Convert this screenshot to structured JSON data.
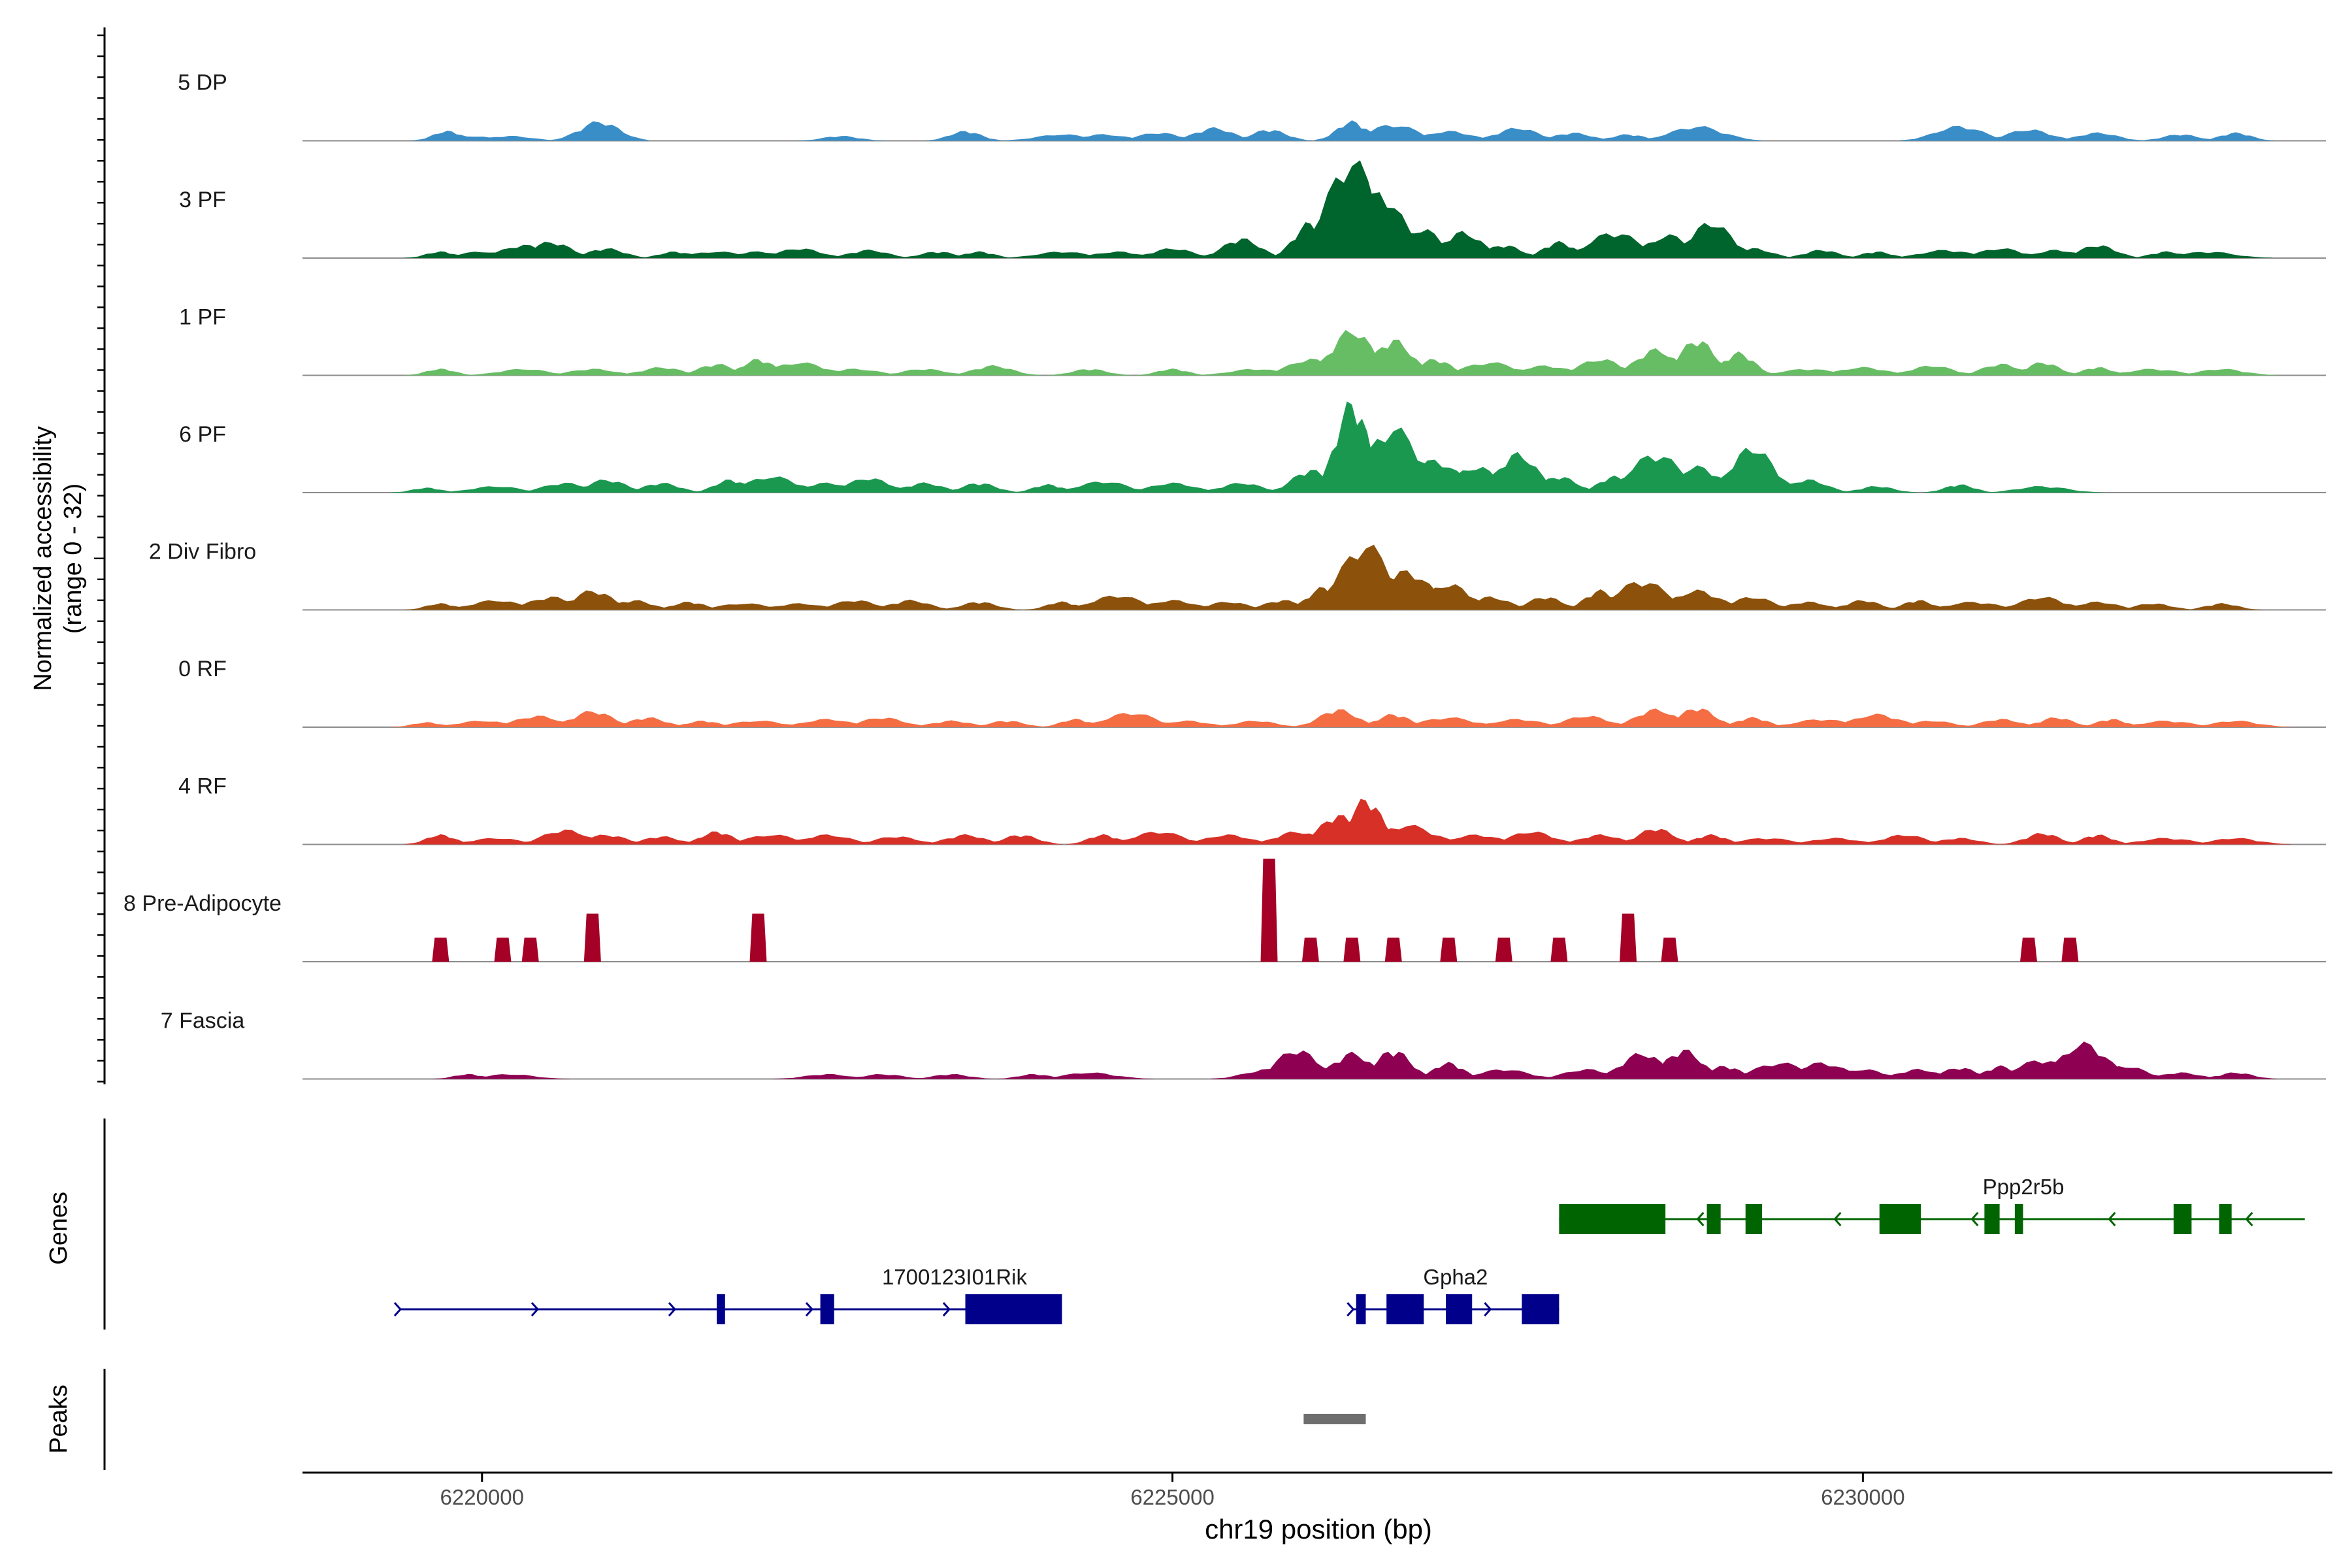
{
  "chart_data": {
    "type": "area",
    "title": "",
    "xlabel": "chr19 position (bp)",
    "ylabel": "Normalized accessibility",
    "ylabel_range": "(range 0 - 32)",
    "xlim": [
      6218700,
      6233400
    ],
    "x_ticks": [
      6220000,
      6225000,
      6230000
    ],
    "x_tick_labels": [
      "6220000",
      "6225000",
      "6230000"
    ],
    "ylim": [
      0,
      32
    ],
    "track_colors": {
      "5 DP": "#3a8ec8",
      "3 PF": "#00642d",
      "1 PF": "#66bd63",
      "6 PF": "#1a9850",
      "2 Div Fibro": "#8c510a",
      "0 RF": "#f46d43",
      "4 RF": "#d73027",
      "8 Pre-Adipocyte": "#a50026",
      "7 Fascia": "#8e0152"
    },
    "series": [
      {
        "name": "5 DP",
        "peaks": [
          [
            6219750,
            3
          ],
          [
            6219900,
            1.5
          ],
          [
            6220200,
            1.5
          ],
          [
            6220850,
            6
          ],
          [
            6222600,
            1.5
          ],
          [
            6223500,
            3
          ],
          [
            6224200,
            2
          ],
          [
            6224500,
            2
          ],
          [
            6224900,
            2.5
          ],
          [
            6225300,
            4
          ],
          [
            6225700,
            3.5
          ],
          [
            6226300,
            6
          ],
          [
            6226600,
            5
          ],
          [
            6227000,
            3
          ],
          [
            6227500,
            4
          ],
          [
            6227900,
            2.5
          ],
          [
            6228300,
            2
          ],
          [
            6228800,
            4.5
          ],
          [
            6230700,
            4.5
          ],
          [
            6231200,
            3.5
          ],
          [
            6231700,
            2.5
          ],
          [
            6232300,
            2
          ],
          [
            6232700,
            2.5
          ]
        ]
      },
      {
        "name": "3 PF",
        "peaks": [
          [
            6219700,
            2
          ],
          [
            6220000,
            2
          ],
          [
            6220300,
            4
          ],
          [
            6220500,
            5
          ],
          [
            6220900,
            3
          ],
          [
            6221400,
            2
          ],
          [
            6221700,
            2
          ],
          [
            6222000,
            2
          ],
          [
            6222300,
            3
          ],
          [
            6222800,
            2.5
          ],
          [
            6223300,
            2
          ],
          [
            6223600,
            2
          ],
          [
            6224200,
            2
          ],
          [
            6224600,
            2
          ],
          [
            6225000,
            3
          ],
          [
            6225500,
            6
          ],
          [
            6226000,
            11
          ],
          [
            6226300,
            30
          ],
          [
            6226500,
            20
          ],
          [
            6226800,
            9
          ],
          [
            6227100,
            8
          ],
          [
            6227400,
            4
          ],
          [
            6227800,
            5
          ],
          [
            6228200,
            8
          ],
          [
            6228600,
            7
          ],
          [
            6228900,
            11
          ],
          [
            6229200,
            3
          ],
          [
            6229700,
            2.5
          ],
          [
            6230100,
            2
          ],
          [
            6230600,
            2.5
          ],
          [
            6231000,
            3
          ],
          [
            6231400,
            2.5
          ],
          [
            6231700,
            4
          ],
          [
            6232200,
            2
          ],
          [
            6232500,
            2
          ]
        ]
      },
      {
        "name": "1 PF",
        "peaks": [
          [
            6219700,
            2
          ],
          [
            6220300,
            2
          ],
          [
            6220800,
            2
          ],
          [
            6221300,
            2.5
          ],
          [
            6221700,
            3.5
          ],
          [
            6222000,
            5
          ],
          [
            6222300,
            4
          ],
          [
            6222700,
            2
          ],
          [
            6223200,
            2
          ],
          [
            6223700,
            3
          ],
          [
            6224400,
            2
          ],
          [
            6225000,
            2
          ],
          [
            6225600,
            2
          ],
          [
            6226000,
            5
          ],
          [
            6226300,
            14
          ],
          [
            6226600,
            11
          ],
          [
            6226900,
            5
          ],
          [
            6227300,
            4
          ],
          [
            6227700,
            3
          ],
          [
            6228100,
            5
          ],
          [
            6228500,
            8
          ],
          [
            6228800,
            11
          ],
          [
            6229100,
            7
          ],
          [
            6229600,
            2
          ],
          [
            6230000,
            2.5
          ],
          [
            6230500,
            3
          ],
          [
            6231000,
            3.5
          ],
          [
            6231300,
            4
          ],
          [
            6231700,
            2.5
          ],
          [
            6232100,
            2
          ],
          [
            6232600,
            2
          ]
        ]
      },
      {
        "name": "6 PF",
        "peaks": [
          [
            6219600,
            1.5
          ],
          [
            6220100,
            2
          ],
          [
            6220600,
            3
          ],
          [
            6220900,
            4
          ],
          [
            6221300,
            3
          ],
          [
            6221800,
            4
          ],
          [
            6222100,
            5
          ],
          [
            6222500,
            3
          ],
          [
            6222800,
            4.5
          ],
          [
            6223200,
            3
          ],
          [
            6223600,
            3
          ],
          [
            6224100,
            2.5
          ],
          [
            6224500,
            3.5
          ],
          [
            6225000,
            3
          ],
          [
            6225500,
            3
          ],
          [
            6226000,
            7
          ],
          [
            6226300,
            28
          ],
          [
            6226600,
            20
          ],
          [
            6226900,
            10
          ],
          [
            6227200,
            8
          ],
          [
            6227500,
            12
          ],
          [
            6227800,
            5
          ],
          [
            6228200,
            5
          ],
          [
            6228500,
            12
          ],
          [
            6228800,
            8
          ],
          [
            6229200,
            14
          ],
          [
            6229600,
            4
          ],
          [
            6230100,
            2
          ],
          [
            6230700,
            2.5
          ],
          [
            6231300,
            2
          ]
        ]
      },
      {
        "name": "2 Div Fibro",
        "peaks": [
          [
            6219700,
            2
          ],
          [
            6220100,
            3
          ],
          [
            6220500,
            4
          ],
          [
            6220800,
            6
          ],
          [
            6221100,
            3
          ],
          [
            6221500,
            2.5
          ],
          [
            6221900,
            2
          ],
          [
            6222300,
            2
          ],
          [
            6222700,
            3
          ],
          [
            6223100,
            3
          ],
          [
            6223600,
            2.5
          ],
          [
            6224200,
            2.5
          ],
          [
            6224600,
            4.5
          ],
          [
            6225000,
            3
          ],
          [
            6225400,
            2.5
          ],
          [
            6225800,
            3
          ],
          [
            6226100,
            7
          ],
          [
            6226400,
            20
          ],
          [
            6226700,
            12
          ],
          [
            6227000,
            8
          ],
          [
            6227300,
            4
          ],
          [
            6227700,
            4
          ],
          [
            6228100,
            6
          ],
          [
            6228400,
            9
          ],
          [
            6228800,
            6
          ],
          [
            6229200,
            4
          ],
          [
            6229600,
            2.5
          ],
          [
            6230000,
            3
          ],
          [
            6230400,
            3
          ],
          [
            6230800,
            2.5
          ],
          [
            6231300,
            4
          ],
          [
            6231700,
            2.5
          ],
          [
            6232100,
            2
          ],
          [
            6232600,
            2
          ]
        ]
      },
      {
        "name": "0 RF",
        "peaks": [
          [
            6219600,
            1.5
          ],
          [
            6220000,
            2
          ],
          [
            6220400,
            3.5
          ],
          [
            6220800,
            5
          ],
          [
            6221200,
            3
          ],
          [
            6221600,
            2
          ],
          [
            6222000,
            2
          ],
          [
            6222500,
            2.5
          ],
          [
            6222900,
            3
          ],
          [
            6223400,
            2
          ],
          [
            6223800,
            2
          ],
          [
            6224300,
            2.5
          ],
          [
            6224700,
            4.5
          ],
          [
            6225100,
            2
          ],
          [
            6225600,
            2
          ],
          [
            6226200,
            5.5
          ],
          [
            6226600,
            4
          ],
          [
            6227000,
            3
          ],
          [
            6227500,
            2.5
          ],
          [
            6228000,
            3.5
          ],
          [
            6228500,
            5.5
          ],
          [
            6228800,
            6
          ],
          [
            6229200,
            3
          ],
          [
            6229700,
            2.5
          ],
          [
            6230100,
            4
          ],
          [
            6230500,
            2
          ],
          [
            6231000,
            2.5
          ],
          [
            6231400,
            3
          ],
          [
            6231800,
            2.5
          ],
          [
            6232200,
            2
          ],
          [
            6232700,
            2
          ]
        ]
      },
      {
        "name": "4 RF",
        "peaks": [
          [
            6219700,
            3
          ],
          [
            6220100,
            2
          ],
          [
            6220600,
            4.5
          ],
          [
            6220900,
            3
          ],
          [
            6221300,
            2.5
          ],
          [
            6221700,
            4
          ],
          [
            6222100,
            3
          ],
          [
            6222500,
            3
          ],
          [
            6223000,
            2.5
          ],
          [
            6223500,
            3
          ],
          [
            6223900,
            3
          ],
          [
            6224500,
            3
          ],
          [
            6224900,
            4
          ],
          [
            6225400,
            3
          ],
          [
            6225900,
            4
          ],
          [
            6226200,
            9
          ],
          [
            6226400,
            14
          ],
          [
            6226700,
            6
          ],
          [
            6227200,
            3
          ],
          [
            6227600,
            4
          ],
          [
            6228100,
            3
          ],
          [
            6228500,
            5
          ],
          [
            6228900,
            3
          ],
          [
            6229300,
            2
          ],
          [
            6229800,
            2
          ],
          [
            6230300,
            3
          ],
          [
            6230700,
            2
          ],
          [
            6231300,
            3.5
          ],
          [
            6231700,
            3
          ],
          [
            6232200,
            2
          ],
          [
            6232700,
            2
          ]
        ]
      },
      {
        "name": "8 Pre-Adipocyte",
        "peaks": [
          [
            6219700,
            7
          ],
          [
            6220150,
            7
          ],
          [
            6220350,
            7
          ],
          [
            6220800,
            14
          ],
          [
            6222000,
            14
          ],
          [
            6225700,
            30
          ],
          [
            6226000,
            7
          ],
          [
            6226300,
            7
          ],
          [
            6226600,
            7
          ],
          [
            6227000,
            7
          ],
          [
            6227400,
            7
          ],
          [
            6227800,
            7
          ],
          [
            6228300,
            14
          ],
          [
            6228600,
            7
          ],
          [
            6231200,
            7
          ],
          [
            6231500,
            7
          ]
        ]
      },
      {
        "name": "7 Fascia",
        "peaks": [
          [
            6219900,
            1.5
          ],
          [
            6220200,
            1.5
          ],
          [
            6222500,
            1.5
          ],
          [
            6222900,
            1.5
          ],
          [
            6223400,
            1.5
          ],
          [
            6224000,
            1.5
          ],
          [
            6224400,
            2
          ],
          [
            6225700,
            3
          ],
          [
            6225900,
            9
          ],
          [
            6226300,
            8
          ],
          [
            6226600,
            9
          ],
          [
            6227000,
            5
          ],
          [
            6227400,
            3
          ],
          [
            6228000,
            3
          ],
          [
            6228400,
            8
          ],
          [
            6228700,
            9
          ],
          [
            6229000,
            4
          ],
          [
            6229400,
            5
          ],
          [
            6229700,
            5
          ],
          [
            6230000,
            3
          ],
          [
            6230400,
            3
          ],
          [
            6230700,
            3.5
          ],
          [
            6231000,
            4
          ],
          [
            6231300,
            6
          ],
          [
            6231600,
            11
          ],
          [
            6231900,
            4
          ],
          [
            6232300,
            2
          ],
          [
            6232700,
            2
          ]
        ]
      }
    ],
    "genes": [
      {
        "name": "Ppp2r5b",
        "start": 6227800,
        "end": 6233200,
        "strand": "-",
        "color": "#006400",
        "exons": [
          [
            6227800,
            6228570
          ],
          [
            6228870,
            6228970
          ],
          [
            6229150,
            6229270
          ],
          [
            6230120,
            6230420
          ],
          [
            6230880,
            6230990
          ],
          [
            6231100,
            6231160
          ],
          [
            6232250,
            6232380
          ],
          [
            6232580,
            6232670
          ]
        ]
      },
      {
        "name": "1700123I01Rik",
        "start": 6219400,
        "end": 6224200,
        "strand": "+",
        "color": "#00008b",
        "exons": [
          [
            6221700,
            6221760
          ],
          [
            6222450,
            6222550
          ],
          [
            6223500,
            6224200
          ]
        ]
      },
      {
        "name": "Gpha2",
        "start": 6226300,
        "end": 6227800,
        "strand": "+",
        "color": "#00008b",
        "exons": [
          [
            6226330,
            6226400
          ],
          [
            6226550,
            6226820
          ],
          [
            6226980,
            6227170
          ],
          [
            6227530,
            6227800
          ]
        ]
      }
    ],
    "peaks": [
      {
        "start": 6225950,
        "end": 6226400
      }
    ],
    "panel_labels": {
      "genes": "Genes",
      "peaks": "Peaks"
    }
  }
}
